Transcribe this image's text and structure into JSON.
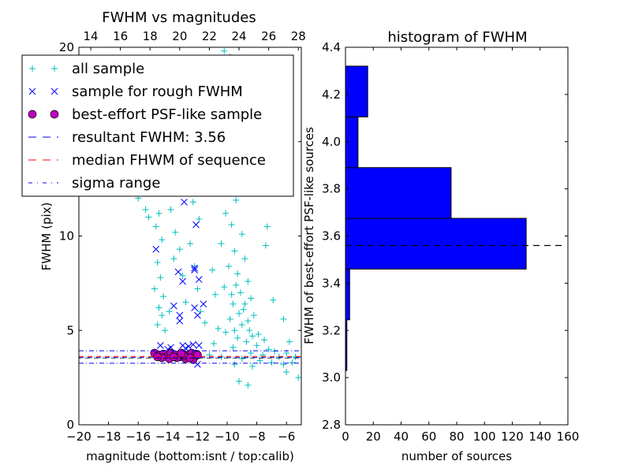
{
  "chart_data": [
    {
      "type": "scatter",
      "title": "FWHM vs magnitudes",
      "xlabel": "magnitude (bottom:isnt / top:calib)",
      "ylabel": "FWHM (pix)",
      "xlim": [
        -20,
        -5
      ],
      "ylim": [
        0,
        20
      ],
      "top_xlim": [
        13.2,
        28.2
      ],
      "xticks": [
        "−20",
        "−18",
        "−16",
        "−14",
        "−12",
        "−10",
        "−8",
        "−6"
      ],
      "xtick_values": [
        -20,
        -18,
        -16,
        -14,
        -12,
        -10,
        -8,
        -6
      ],
      "top_xticks": [
        "14",
        "16",
        "18",
        "20",
        "22",
        "24",
        "26",
        "28"
      ],
      "top_xtick_values": [
        14,
        16,
        18,
        20,
        22,
        24,
        26,
        28
      ],
      "yticks": [
        "0",
        "5",
        "10",
        "20"
      ],
      "ytick_values": [
        0,
        5,
        10,
        20
      ],
      "legend_position": "upper-left",
      "legend": [
        {
          "label": "all sample",
          "marker": "+",
          "color": "#00bfbf"
        },
        {
          "label": "sample for rough FWHM",
          "marker": "x",
          "color": "#0000ff"
        },
        {
          "label": "best-effort PSF-like sample",
          "marker": "o",
          "color": "#bf00bf"
        },
        {
          "label": "resultant FWHM: 3.56",
          "marker": "--",
          "color": "#0000ff"
        },
        {
          "label": "median FHWM of sequence",
          "marker": "--",
          "color": "#ff0000"
        },
        {
          "label": "sigma range",
          "marker": "-.",
          "color": "#0000ff"
        }
      ],
      "lines": {
        "resultant": 3.56,
        "median": 3.62,
        "sigma_low": 3.26,
        "sigma_high": 3.92
      },
      "series": [
        {
          "name": "all sample",
          "color": "#00bfbf",
          "points": [
            [
              -14.6,
              11.2
            ],
            [
              -14.8,
              10.5
            ],
            [
              -14.4,
              9.8
            ],
            [
              -14.7,
              8.6
            ],
            [
              -14.5,
              7.8
            ],
            [
              -14.9,
              7.2
            ],
            [
              -14.3,
              6.8
            ],
            [
              -14.6,
              6.2
            ],
            [
              -14.4,
              5.8
            ],
            [
              -14.7,
              5.3
            ],
            [
              -14.2,
              5.0
            ],
            [
              -15.3,
              11.0
            ],
            [
              -13.8,
              11.4
            ],
            [
              -13.5,
              10.2
            ],
            [
              -13.2,
              9.3
            ],
            [
              -13.6,
              8.8
            ],
            [
              -13.0,
              7.9
            ],
            [
              -12.8,
              6.5
            ],
            [
              -13.9,
              6.0
            ],
            [
              -12.5,
              9.6
            ],
            [
              -12.2,
              8.4
            ],
            [
              -12.0,
              7.2
            ],
            [
              -11.8,
              6.0
            ],
            [
              -11.5,
              5.4
            ],
            [
              -12.3,
              11.8
            ],
            [
              -11.9,
              10.9
            ],
            [
              -10.2,
              19.8
            ],
            [
              -9.8,
              19.5
            ],
            [
              -9.5,
              18.2
            ],
            [
              -9.9,
              16.8
            ],
            [
              -10.5,
              15.2
            ],
            [
              -9.2,
              14.6
            ],
            [
              -10.0,
              13.8
            ],
            [
              -9.6,
              13.1
            ],
            [
              -10.8,
              12.4
            ],
            [
              -8.9,
              12.7
            ],
            [
              -9.4,
              11.9
            ],
            [
              -10.1,
              11.2
            ],
            [
              -9.7,
              10.6
            ],
            [
              -9.0,
              10.1
            ],
            [
              -10.4,
              9.6
            ],
            [
              -9.5,
              9.2
            ],
            [
              -8.8,
              8.8
            ],
            [
              -9.9,
              8.4
            ],
            [
              -9.3,
              8.0
            ],
            [
              -8.6,
              7.6
            ],
            [
              -10.2,
              7.3
            ],
            [
              -9.1,
              7.0
            ],
            [
              -8.4,
              6.7
            ],
            [
              -9.6,
              6.4
            ],
            [
              -8.9,
              6.1
            ],
            [
              -8.2,
              5.8
            ],
            [
              -9.8,
              5.6
            ],
            [
              -9.0,
              5.3
            ],
            [
              -8.5,
              5.0
            ],
            [
              -7.9,
              4.8
            ],
            [
              -10.6,
              5.1
            ],
            [
              -9.3,
              4.6
            ],
            [
              -8.7,
              4.4
            ],
            [
              -8.0,
              4.2
            ],
            [
              -7.5,
              4.5
            ],
            [
              -7.2,
              4.0
            ],
            [
              -6.8,
              3.9
            ],
            [
              -9.6,
              4.1
            ],
            [
              -10.9,
              4.3
            ],
            [
              -8.4,
              3.8
            ],
            [
              -7.6,
              3.7
            ],
            [
              -6.5,
              3.6
            ],
            [
              -6.0,
              3.8
            ],
            [
              -5.4,
              3.6
            ],
            [
              -11.2,
              3.7
            ],
            [
              -10.4,
              3.6
            ],
            [
              -9.0,
              3.5
            ],
            [
              -7.8,
              3.4
            ],
            [
              -7.0,
              3.3
            ],
            [
              -6.2,
              3.2
            ],
            [
              -5.6,
              3.3
            ],
            [
              -8.3,
              3.1
            ],
            [
              -9.5,
              3.2
            ],
            [
              -8.6,
              2.1
            ],
            [
              -9.2,
              2.3
            ],
            [
              -6.0,
              2.8
            ],
            [
              -5.2,
              2.5
            ],
            [
              -7.4,
              9.5
            ],
            [
              -6.9,
              6.6
            ],
            [
              -6.2,
              5.6
            ],
            [
              -7.3,
              10.5
            ],
            [
              -5.8,
              4.4
            ],
            [
              -11.0,
              8.2
            ],
            [
              -10.8,
              6.9
            ],
            [
              -15.5,
              11.4
            ],
            [
              -16.0,
              12.0
            ],
            [
              -9.4,
              7.4
            ],
            [
              -9.7,
              6.9
            ],
            [
              -8.8,
              6.4
            ],
            [
              -9.2,
              5.9
            ],
            [
              -8.6,
              5.5
            ],
            [
              -9.5,
              5.0
            ],
            [
              -8.3,
              4.7
            ],
            [
              -10.1,
              4.9
            ]
          ]
        },
        {
          "name": "sample for rough FWHM",
          "color": "#0000ff",
          "points": [
            [
              -14.8,
              9.3
            ],
            [
              -13.3,
              8.1
            ],
            [
              -13.0,
              7.6
            ],
            [
              -12.2,
              8.3
            ],
            [
              -12.2,
              8.2
            ],
            [
              -11.9,
              7.7
            ],
            [
              -13.6,
              6.3
            ],
            [
              -12.2,
              6.2
            ],
            [
              -11.6,
              6.4
            ],
            [
              -13.2,
              5.8
            ],
            [
              -13.2,
              5.5
            ],
            [
              -12.0,
              5.8
            ],
            [
              -12.1,
              10.6
            ],
            [
              -12.9,
              11.8
            ],
            [
              -14.5,
              4.2
            ],
            [
              -13.8,
              4.1
            ],
            [
              -13.0,
              4.2
            ],
            [
              -12.6,
              4.15
            ],
            [
              -12.3,
              4.25
            ],
            [
              -11.9,
              4.2
            ],
            [
              -12.8,
              4.05
            ],
            [
              -12.0,
              3.2
            ],
            [
              -14.0,
              4.0
            ]
          ]
        },
        {
          "name": "best-effort PSF-like sample",
          "color": "#bf00bf",
          "points": [
            [
              -14.9,
              3.8
            ],
            [
              -14.6,
              3.7
            ],
            [
              -14.3,
              3.75
            ],
            [
              -14.0,
              3.65
            ],
            [
              -13.8,
              3.8
            ],
            [
              -13.5,
              3.7
            ],
            [
              -13.2,
              3.6
            ],
            [
              -13.0,
              3.75
            ],
            [
              -12.8,
              3.5
            ],
            [
              -12.6,
              3.7
            ],
            [
              -12.4,
              3.8
            ],
            [
              -12.2,
              3.6
            ],
            [
              -12.1,
              3.75
            ],
            [
              -14.4,
              3.55
            ],
            [
              -13.9,
              3.5
            ],
            [
              -13.4,
              3.55
            ],
            [
              -12.9,
              3.65
            ],
            [
              -12.3,
              3.45
            ],
            [
              -14.7,
              3.6
            ],
            [
              -13.6,
              3.6
            ],
            [
              -12.5,
              3.55
            ],
            [
              -12.0,
              3.7
            ],
            [
              -13.1,
              3.8
            ]
          ]
        }
      ]
    },
    {
      "type": "bar",
      "orientation": "horizontal",
      "title": "histogram of FWHM",
      "xlabel": "number of sources",
      "ylabel": "FWHM of best-effort PSF-like sources",
      "xlim": [
        0,
        160
      ],
      "ylim": [
        2.8,
        4.4
      ],
      "xticks": [
        "0",
        "20",
        "40",
        "60",
        "80",
        "100",
        "120",
        "140",
        "160"
      ],
      "xtick_values": [
        0,
        20,
        40,
        60,
        80,
        100,
        120,
        140,
        160
      ],
      "yticks": [
        "2.8",
        "3.0",
        "3.2",
        "3.4",
        "3.6",
        "3.8",
        "4.0",
        "4.2",
        "4.4"
      ],
      "ytick_values": [
        2.8,
        3.0,
        3.2,
        3.4,
        3.6,
        3.8,
        4.0,
        4.2,
        4.4
      ],
      "bin_edges": [
        3.03,
        3.245,
        3.46,
        3.675,
        3.89,
        4.105,
        4.32
      ],
      "values": [
        1,
        3,
        130,
        76,
        9,
        16
      ],
      "bar_color": "#0000ff",
      "reference_line": 3.56
    }
  ]
}
